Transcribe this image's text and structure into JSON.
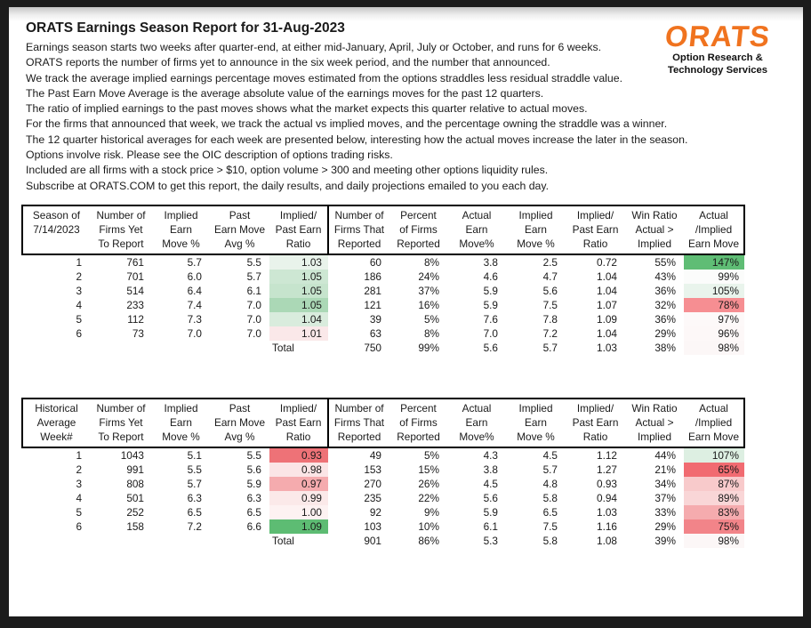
{
  "document": {
    "title": "ORATS Earnings Season Report for 31-Aug-2023",
    "intro_lines": [
      "Earnings season starts two weeks after quarter-end, at either mid-January, April, July or October, and runs for 6 weeks.",
      "ORATS reports the number of firms yet to announce in the six week period, and the number that announced.",
      "We track the average implied earnings percentage moves estimated from the options straddles less residual straddle value.",
      "The Past Earn Move Average is the average absolute value of the earnings moves for the past 12 quarters.",
      "The ratio of implied earnings to the past moves shows what the market expects this quarter relative to actual moves.",
      "For the firms that announced that week, we track the actual vs implied moves, and the percentage owning the straddle was a winner.",
      "The 12 quarter historical averages for each week are presented below, interesting how the actual moves increase the later in the season.",
      "Options involve risk. Please see the OIC description of options trading risks.",
      "Included are all firms with a stock price > $10, option volume > 300 and meeting other options liquidity rules.",
      "Subscribe at ORATS.COM to get this report, the daily results, and daily projections emailed to you each day."
    ],
    "logo": {
      "wordmark": "ORATS",
      "tagline": "Option Research &\nTechnology Services",
      "brand_color": "#f0731f"
    }
  },
  "tables": [
    {
      "name": "current-season",
      "headers": [
        "Season of\n7/14/2023",
        "Number of\nFirms Yet\nTo Report",
        "Implied\nEarn\nMove %",
        "Past\nEarn Move\nAvg %",
        "Implied/\nPast Earn\nRatio",
        "Number of\nFirms That\nReported",
        "Percent\nof Firms\nReported",
        "Actual\nEarn\nMove%",
        "Implied\nEarn\nMove %",
        "Implied/\nPast Earn\nRatio",
        "Win Ratio\nActual >\nImplied",
        "Actual\n/Implied\nEarn Move"
      ],
      "rows": [
        {
          "cells": [
            "1",
            "761",
            "5.7",
            "5.5",
            "1.03",
            "60",
            "8%",
            "3.8",
            "2.5",
            "0.72",
            "55%",
            "147%"
          ],
          "ratio_bg": "#e9f3eb",
          "ai_bg": "#5fbd75"
        },
        {
          "cells": [
            "2",
            "701",
            "6.0",
            "5.7",
            "1.05",
            "186",
            "24%",
            "4.6",
            "4.7",
            "1.04",
            "43%",
            "99%"
          ],
          "ratio_bg": "#cde7d3",
          "ai_bg": "#fbfcfb"
        },
        {
          "cells": [
            "3",
            "514",
            "6.4",
            "6.1",
            "1.05",
            "281",
            "37%",
            "5.9",
            "5.6",
            "1.04",
            "36%",
            "105%"
          ],
          "ratio_bg": "#c6e4cd",
          "ai_bg": "#e9f4ec"
        },
        {
          "cells": [
            "4",
            "233",
            "7.4",
            "7.0",
            "1.05",
            "121",
            "16%",
            "5.9",
            "7.5",
            "1.07",
            "32%",
            "78%"
          ],
          "ratio_bg": "#abd8b6",
          "ai_bg": "#f68e92"
        },
        {
          "cells": [
            "5",
            "112",
            "7.3",
            "7.0",
            "1.04",
            "39",
            "5%",
            "7.6",
            "7.8",
            "1.09",
            "36%",
            "97%"
          ],
          "ratio_bg": "#d9ecdd",
          "ai_bg": "#fdf9f9"
        },
        {
          "cells": [
            "6",
            "73",
            "7.0",
            "7.0",
            "1.01",
            "63",
            "8%",
            "7.0",
            "7.2",
            "1.04",
            "29%",
            "96%"
          ],
          "ratio_bg": "#fae8e9",
          "ai_bg": "#fdf8f8"
        },
        {
          "cells": [
            "",
            "",
            "",
            "",
            "Total",
            "750",
            "99%",
            "5.6",
            "5.7",
            "1.03",
            "38%",
            "98%"
          ],
          "ai_bg": "#fcf7f7",
          "total": true
        }
      ]
    },
    {
      "name": "historical-average",
      "headers": [
        "Historical\nAverage\nWeek#",
        "Number of\nFirms Yet\nTo Report",
        "Implied\nEarn\nMove %",
        "Past\nEarn Move\nAvg %",
        "Implied/\nPast Earn\nRatio",
        "Number of\nFirms That\nReported",
        "Percent\nof Firms\nReported",
        "Actual\nEarn\nMove%",
        "Implied\nEarn\nMove %",
        "Implied/\nPast Earn\nRatio",
        "Win Ratio\nActual >\nImplied",
        "Actual\n/Implied\nEarn Move"
      ],
      "rows": [
        {
          "cells": [
            "1",
            "1043",
            "5.1",
            "5.5",
            "0.93",
            "49",
            "5%",
            "4.3",
            "4.5",
            "1.12",
            "44%",
            "107%"
          ],
          "ratio_bg": "#ee7277",
          "ai_bg": "#ddefe2"
        },
        {
          "cells": [
            "2",
            "991",
            "5.5",
            "5.6",
            "0.98",
            "153",
            "15%",
            "3.8",
            "5.7",
            "1.27",
            "21%",
            "65%"
          ],
          "ratio_bg": "#fbe5e6",
          "ai_bg": "#f16b71"
        },
        {
          "cells": [
            "3",
            "808",
            "5.7",
            "5.9",
            "0.97",
            "270",
            "26%",
            "4.5",
            "4.8",
            "0.93",
            "34%",
            "87%"
          ],
          "ratio_bg": "#f5abae",
          "ai_bg": "#f8cacb"
        },
        {
          "cells": [
            "4",
            "501",
            "6.3",
            "6.3",
            "0.99",
            "235",
            "22%",
            "5.6",
            "5.8",
            "0.94",
            "37%",
            "89%"
          ],
          "ratio_bg": "#fbe9e9",
          "ai_bg": "#f9d6d7"
        },
        {
          "cells": [
            "5",
            "252",
            "6.5",
            "6.5",
            "1.00",
            "92",
            "9%",
            "5.9",
            "6.5",
            "1.03",
            "33%",
            "83%"
          ],
          "ratio_bg": "#fdf2f2",
          "ai_bg": "#f5abae"
        },
        {
          "cells": [
            "6",
            "158",
            "7.2",
            "6.6",
            "1.09",
            "103",
            "10%",
            "6.1",
            "7.5",
            "1.16",
            "29%",
            "75%"
          ],
          "ratio_bg": "#5dbc73",
          "ai_bg": "#f28489"
        },
        {
          "cells": [
            "",
            "",
            "",
            "",
            "Total",
            "901",
            "86%",
            "5.3",
            "5.8",
            "1.08",
            "39%",
            "98%"
          ],
          "ai_bg": "#fcf7f7",
          "total": true
        }
      ]
    }
  ]
}
